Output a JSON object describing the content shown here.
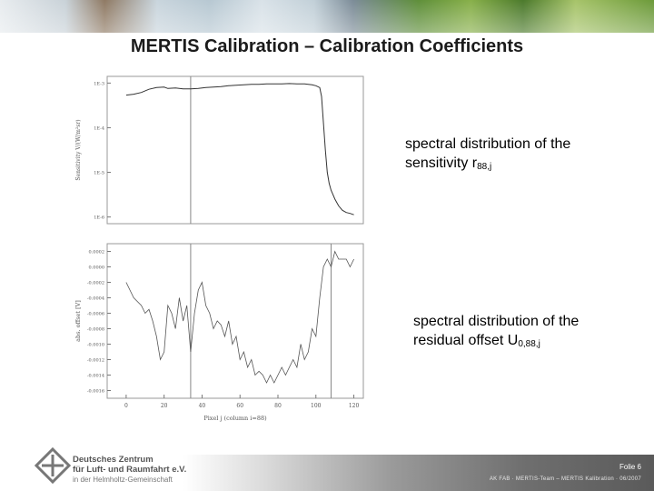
{
  "slide": {
    "title": "MERTIS Calibration – Calibration Coefficients",
    "caption_top": {
      "line1": "spectral distribution of the",
      "line2": "sensitivity r",
      "sub": "88,j"
    },
    "caption_bottom": {
      "line1": "spectral distribution of the",
      "line2": "residual offset U",
      "sub": "0,88,j"
    }
  },
  "logo": {
    "name": "dlr-logo-icon",
    "line1": "Deutsches Zentrum",
    "line2": "für Luft- und Raumfahrt e.V.",
    "line3": "in der Helmholtz-Gemeinschaft"
  },
  "footer": {
    "folie": "Folie 6",
    "footnote": "AK FAB · MERTIS-Team – MERTIS Kalibration · 06/2007"
  },
  "colors": {
    "title": "#1b1b1b",
    "footer_dark": "#5a5a5a"
  },
  "chart_data": [
    {
      "type": "line",
      "title": "",
      "xlabel": "",
      "ylabel": "Sensitivity V/(W/m²sr)",
      "yticks": [
        "1E-3",
        "1E-4",
        "1E-5",
        "1E-6"
      ],
      "y_log_exp_range": [
        -6.15,
        -2.85
      ],
      "xlim": [
        -10,
        125
      ],
      "vline_x": 34,
      "series": [
        {
          "x": [
            0,
            4,
            8,
            12,
            16,
            20,
            22,
            26,
            30,
            34,
            38,
            42,
            46,
            50,
            54,
            58,
            62,
            66,
            70,
            74,
            78,
            82,
            86,
            90,
            94,
            98,
            100,
            102,
            103,
            104,
            105,
            106,
            107,
            108,
            109,
            110,
            112,
            114,
            116,
            118,
            120
          ],
          "y": [
            -3.27,
            -3.25,
            -3.21,
            -3.14,
            -3.1,
            -3.09,
            -3.12,
            -3.11,
            -3.13,
            -3.13,
            -3.12,
            -3.1,
            -3.09,
            -3.08,
            -3.06,
            -3.05,
            -3.04,
            -3.03,
            -3.03,
            -3.02,
            -3.02,
            -3.02,
            -3.01,
            -3.02,
            -3.02,
            -3.04,
            -3.06,
            -3.1,
            -3.3,
            -3.9,
            -4.5,
            -5.0,
            -5.25,
            -5.4,
            -5.5,
            -5.6,
            -5.75,
            -5.85,
            -5.9,
            -5.92,
            -5.95
          ]
        }
      ]
    },
    {
      "type": "line",
      "title": "",
      "xlabel": "Pixel j (column i=88)",
      "ylabel": "abs. offset [V]",
      "yticks": [
        "0.0002",
        "0.0000",
        "-0.0002",
        "-0.0004",
        "-0.0006",
        "-0.0008",
        "-0.0010",
        "-0.0012",
        "-0.0014",
        "-0.0016"
      ],
      "ylim": [
        -0.0017,
        0.0003
      ],
      "xticks": [
        "0",
        "20",
        "40",
        "60",
        "80",
        "100",
        "120"
      ],
      "xlim": [
        -10,
        125
      ],
      "vline_x": [
        34,
        108
      ],
      "series": [
        {
          "x": [
            0,
            4,
            8,
            10,
            12,
            14,
            16,
            18,
            20,
            22,
            24,
            26,
            28,
            30,
            32,
            34,
            36,
            38,
            40,
            42,
            44,
            46,
            48,
            50,
            52,
            54,
            56,
            58,
            60,
            62,
            64,
            66,
            68,
            70,
            72,
            74,
            76,
            78,
            80,
            82,
            84,
            86,
            88,
            90,
            92,
            94,
            96,
            98,
            100,
            102,
            104,
            106,
            108,
            110,
            112,
            114,
            116,
            118,
            120
          ],
          "y": [
            -0.0002,
            -0.0004,
            -0.0005,
            -0.0006,
            -0.00055,
            -0.0007,
            -0.0009,
            -0.0012,
            -0.0011,
            -0.0005,
            -0.0006,
            -0.0008,
            -0.0004,
            -0.0007,
            -0.0005,
            -0.0011,
            -0.0006,
            -0.0003,
            -0.0002,
            -0.0005,
            -0.0006,
            -0.0008,
            -0.0007,
            -0.00075,
            -0.0009,
            -0.0007,
            -0.001,
            -0.0009,
            -0.0012,
            -0.0011,
            -0.0013,
            -0.0012,
            -0.0014,
            -0.00135,
            -0.0014,
            -0.0015,
            -0.0014,
            -0.0015,
            -0.0014,
            -0.0013,
            -0.0014,
            -0.0013,
            -0.0012,
            -0.0013,
            -0.001,
            -0.0012,
            -0.0011,
            -0.0008,
            -0.0009,
            -0.0004,
            0.0,
            0.0001,
            0.0,
            0.0002,
            0.0001,
            0.0001,
            0.0001,
            0.0,
            0.0001
          ]
        }
      ]
    }
  ]
}
